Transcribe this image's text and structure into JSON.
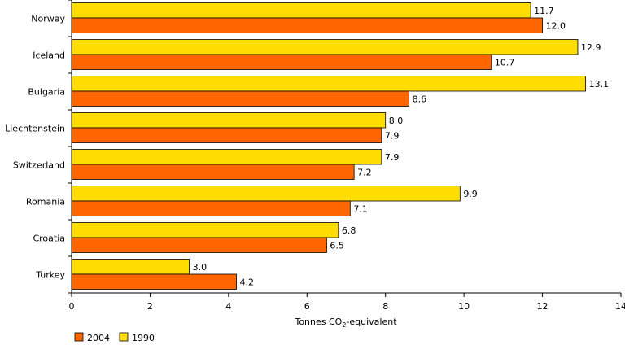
{
  "chart_data": {
    "type": "bar",
    "orientation": "horizontal",
    "categories": [
      "Norway",
      "Iceland",
      "Bulgaria",
      "Liechtenstein",
      "Switzerland",
      "Romania",
      "Croatia",
      "Turkey"
    ],
    "series": [
      {
        "name": "1990",
        "color": "#FFDD00",
        "values": [
          11.7,
          12.9,
          13.1,
          8.0,
          7.9,
          9.9,
          6.8,
          3.0
        ],
        "labels": [
          "11.7",
          "12.9",
          "13.1",
          "8.0",
          "7.9",
          "9.9",
          "6.8",
          "3.0"
        ]
      },
      {
        "name": "2004",
        "color": "#FF6600",
        "values": [
          12.0,
          10.7,
          8.6,
          7.9,
          7.2,
          7.1,
          6.5,
          4.2
        ],
        "labels": [
          "12.0",
          "10.7",
          "8.6",
          "7.9",
          "7.2",
          "7.1",
          "6.5",
          "4.2"
        ]
      }
    ],
    "xlabel_main": "Tonnes CO",
    "xlabel_sub": "2",
    "xlabel_tail": "-equivalent",
    "xlim": [
      0,
      14
    ],
    "xticks": [
      "0",
      "2",
      "4",
      "6",
      "8",
      "10",
      "12",
      "14"
    ],
    "legend": {
      "position": "bottom-left",
      "order": [
        "2004",
        "1990"
      ]
    },
    "grid": false
  }
}
